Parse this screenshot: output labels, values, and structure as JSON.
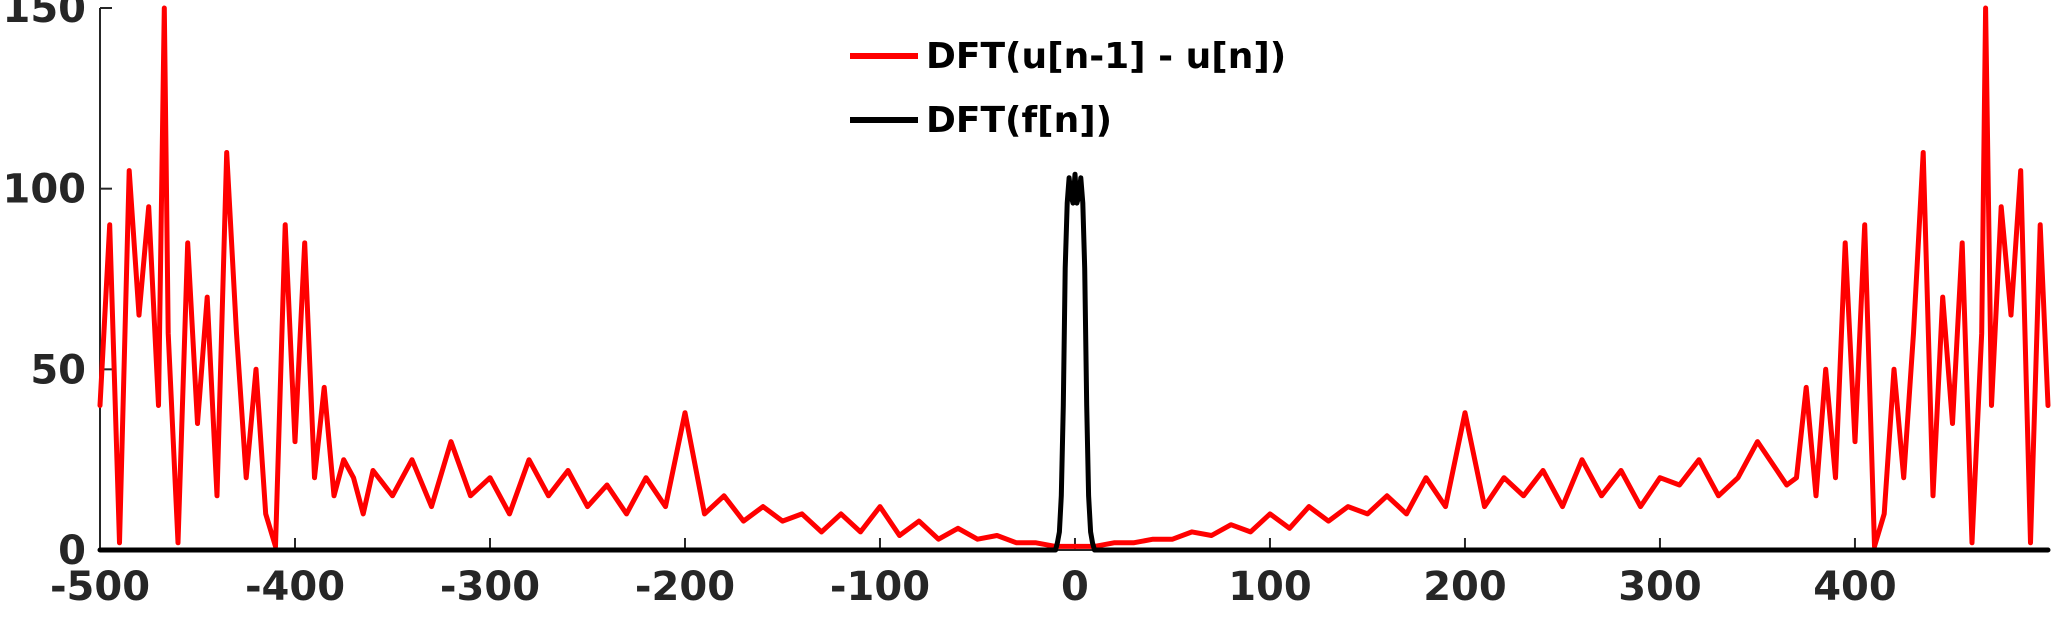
{
  "chart_data": {
    "type": "line",
    "title": "",
    "xlabel": "",
    "ylabel": "",
    "xlim": [
      -500,
      499
    ],
    "ylim": [
      0,
      150
    ],
    "xticks": [
      -500,
      -400,
      -300,
      -200,
      -100,
      0,
      100,
      200,
      300,
      400
    ],
    "yticks": [
      0,
      50,
      100,
      150
    ],
    "xtick_labels": [
      "-500",
      "-400",
      "-300",
      "-200",
      "-100",
      "0",
      "100",
      "200",
      "300",
      "400"
    ],
    "ytick_labels": [
      "0",
      "50",
      "100",
      "150"
    ],
    "grid": false,
    "legend": {
      "position": "top-center"
    },
    "series": [
      {
        "name": "DFT(u[n-1] - u[n])",
        "color": "#ff0000",
        "x": [
          -500,
          -495,
          -490,
          -485,
          -480,
          -475,
          -470,
          -467,
          -465,
          -460,
          -455,
          -450,
          -445,
          -440,
          -435,
          -430,
          -425,
          -420,
          -415,
          -410,
          -405,
          -400,
          -395,
          -390,
          -385,
          -380,
          -375,
          -370,
          -365,
          -360,
          -350,
          -340,
          -330,
          -320,
          -310,
          -300,
          -290,
          -280,
          -270,
          -260,
          -250,
          -240,
          -230,
          -220,
          -210,
          -200,
          -190,
          -180,
          -170,
          -160,
          -150,
          -140,
          -130,
          -120,
          -110,
          -100,
          -90,
          -80,
          -70,
          -60,
          -50,
          -40,
          -30,
          -20,
          -10,
          -5,
          0,
          5,
          10,
          20,
          30,
          40,
          50,
          60,
          70,
          80,
          90,
          100,
          110,
          120,
          130,
          140,
          150,
          160,
          170,
          180,
          190,
          200,
          210,
          220,
          230,
          240,
          250,
          260,
          270,
          280,
          290,
          300,
          310,
          320,
          330,
          340,
          350,
          360,
          365,
          370,
          375,
          380,
          385,
          390,
          395,
          400,
          405,
          410,
          415,
          420,
          425,
          430,
          435,
          440,
          445,
          450,
          455,
          460,
          465,
          467,
          470,
          475,
          480,
          485,
          490,
          495,
          499
        ],
        "y": [
          40,
          90,
          2,
          105,
          65,
          95,
          40,
          150,
          60,
          2,
          85,
          35,
          70,
          15,
          110,
          60,
          20,
          50,
          10,
          1,
          90,
          30,
          85,
          20,
          45,
          15,
          25,
          20,
          10,
          22,
          15,
          25,
          12,
          30,
          15,
          20,
          10,
          25,
          15,
          22,
          12,
          18,
          10,
          20,
          12,
          38,
          10,
          15,
          8,
          12,
          8,
          10,
          5,
          10,
          5,
          12,
          4,
          8,
          3,
          6,
          3,
          4,
          2,
          2,
          1,
          1,
          1,
          1,
          1,
          2,
          2,
          3,
          3,
          5,
          4,
          7,
          5,
          10,
          6,
          12,
          8,
          12,
          10,
          15,
          10,
          20,
          12,
          38,
          12,
          20,
          15,
          22,
          12,
          25,
          15,
          22,
          12,
          20,
          18,
          25,
          15,
          20,
          30,
          22,
          18,
          20,
          45,
          15,
          50,
          20,
          85,
          30,
          90,
          1,
          10,
          50,
          20,
          60,
          110,
          15,
          70,
          35,
          85,
          2,
          60,
          150,
          40,
          95,
          65,
          105,
          2,
          90,
          40
        ]
      },
      {
        "name": "DFT(f[n])",
        "color": "#000000",
        "x": [
          -500,
          -10,
          -9,
          -8,
          -7,
          -6,
          -5,
          -4,
          -3,
          -2,
          -1,
          0,
          1,
          2,
          3,
          4,
          5,
          6,
          7,
          8,
          9,
          10,
          499
        ],
        "y": [
          0,
          0,
          2,
          5,
          15,
          40,
          78,
          96,
          103,
          98,
          96,
          104,
          96,
          98,
          103,
          96,
          78,
          40,
          15,
          5,
          2,
          0,
          0
        ]
      }
    ]
  }
}
